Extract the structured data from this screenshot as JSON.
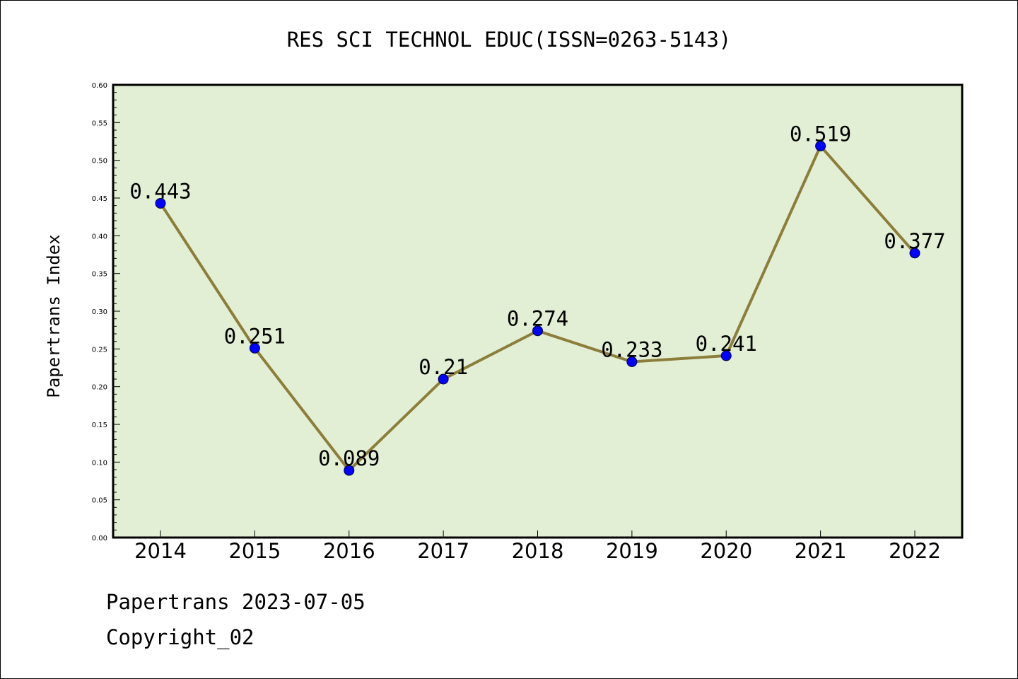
{
  "footer": {
    "line1": "Papertrans 2023-07-05",
    "line2": "Copyright_02"
  },
  "colors": {
    "plot_bg": "#e2efd5",
    "line": "#8c7e3a",
    "marker": "#0000ff",
    "axis": "#000000"
  },
  "chart_data": {
    "type": "line",
    "title": "RES SCI TECHNOL EDUC(ISSN=0263-5143)",
    "xlabel": "",
    "ylabel": "Papertrans Index",
    "categories": [
      "2014",
      "2015",
      "2016",
      "2017",
      "2018",
      "2019",
      "2020",
      "2021",
      "2022"
    ],
    "series": [
      {
        "values": [
          0.443,
          0.251,
          0.089,
          0.21,
          0.274,
          0.233,
          0.241,
          0.519,
          0.377
        ],
        "labels": [
          "0.443",
          "0.251",
          "0.089",
          "0.21",
          "0.274",
          "0.233",
          "0.241",
          "0.519",
          "0.377"
        ]
      }
    ],
    "ylim": [
      0,
      0.6
    ],
    "yticks": [
      "0.00",
      "0.05",
      "0.10",
      "0.15",
      "0.20",
      "0.25",
      "0.30",
      "0.35",
      "0.40",
      "0.45",
      "0.50",
      "0.55",
      "0.60"
    ],
    "grid": false,
    "legend": "none"
  }
}
